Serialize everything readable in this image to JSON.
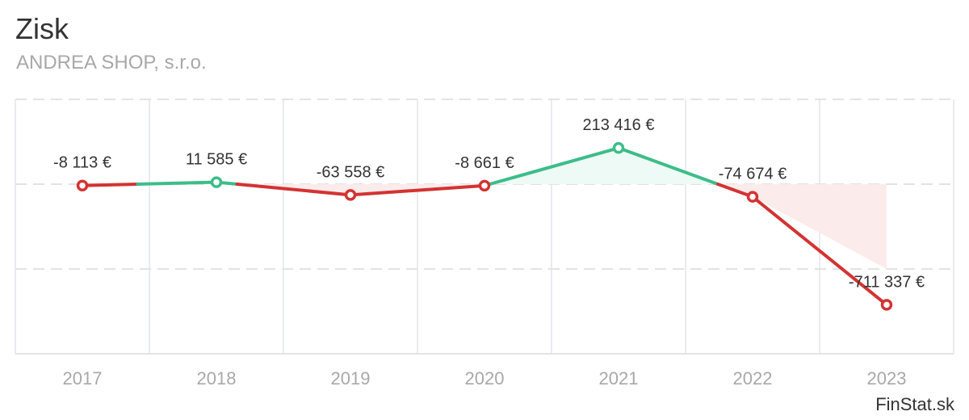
{
  "header": {
    "title": "Zisk",
    "subtitle": "ANDREA SHOP, s.r.o."
  },
  "credit": "FinStat.sk",
  "colors": {
    "positive": "#3dbd8a",
    "negative": "#d33333",
    "positive_fill": "#eefaf5",
    "negative_fill": "#fbeceb",
    "grid": "#e3e3e3",
    "label": "#333333",
    "axis_label": "#a8a8a8"
  },
  "chart_data": {
    "type": "line",
    "title": "Zisk",
    "subtitle": "ANDREA SHOP, s.r.o.",
    "xlabel": "",
    "ylabel": "",
    "categories": [
      "2017",
      "2018",
      "2019",
      "2020",
      "2021",
      "2022",
      "2023"
    ],
    "values": [
      -8113,
      11585,
      -63558,
      -8661,
      213416,
      -74674,
      -711337
    ],
    "data_labels": [
      "-8 113 €",
      "11 585 €",
      "-63 558 €",
      "-8 661 €",
      "213 416 €",
      "-74 674 €",
      "-711 337 €"
    ],
    "ylim": [
      -1000000,
      500000
    ],
    "y_gridlines": [
      500000,
      0,
      -500000,
      -1000000
    ],
    "y_tick_labels_visible": false,
    "grid": true,
    "legend": "none",
    "unit": "€",
    "style_note": "Line segments and markers above zero are green, below zero red; area between line and zero is tinted accordingly."
  }
}
